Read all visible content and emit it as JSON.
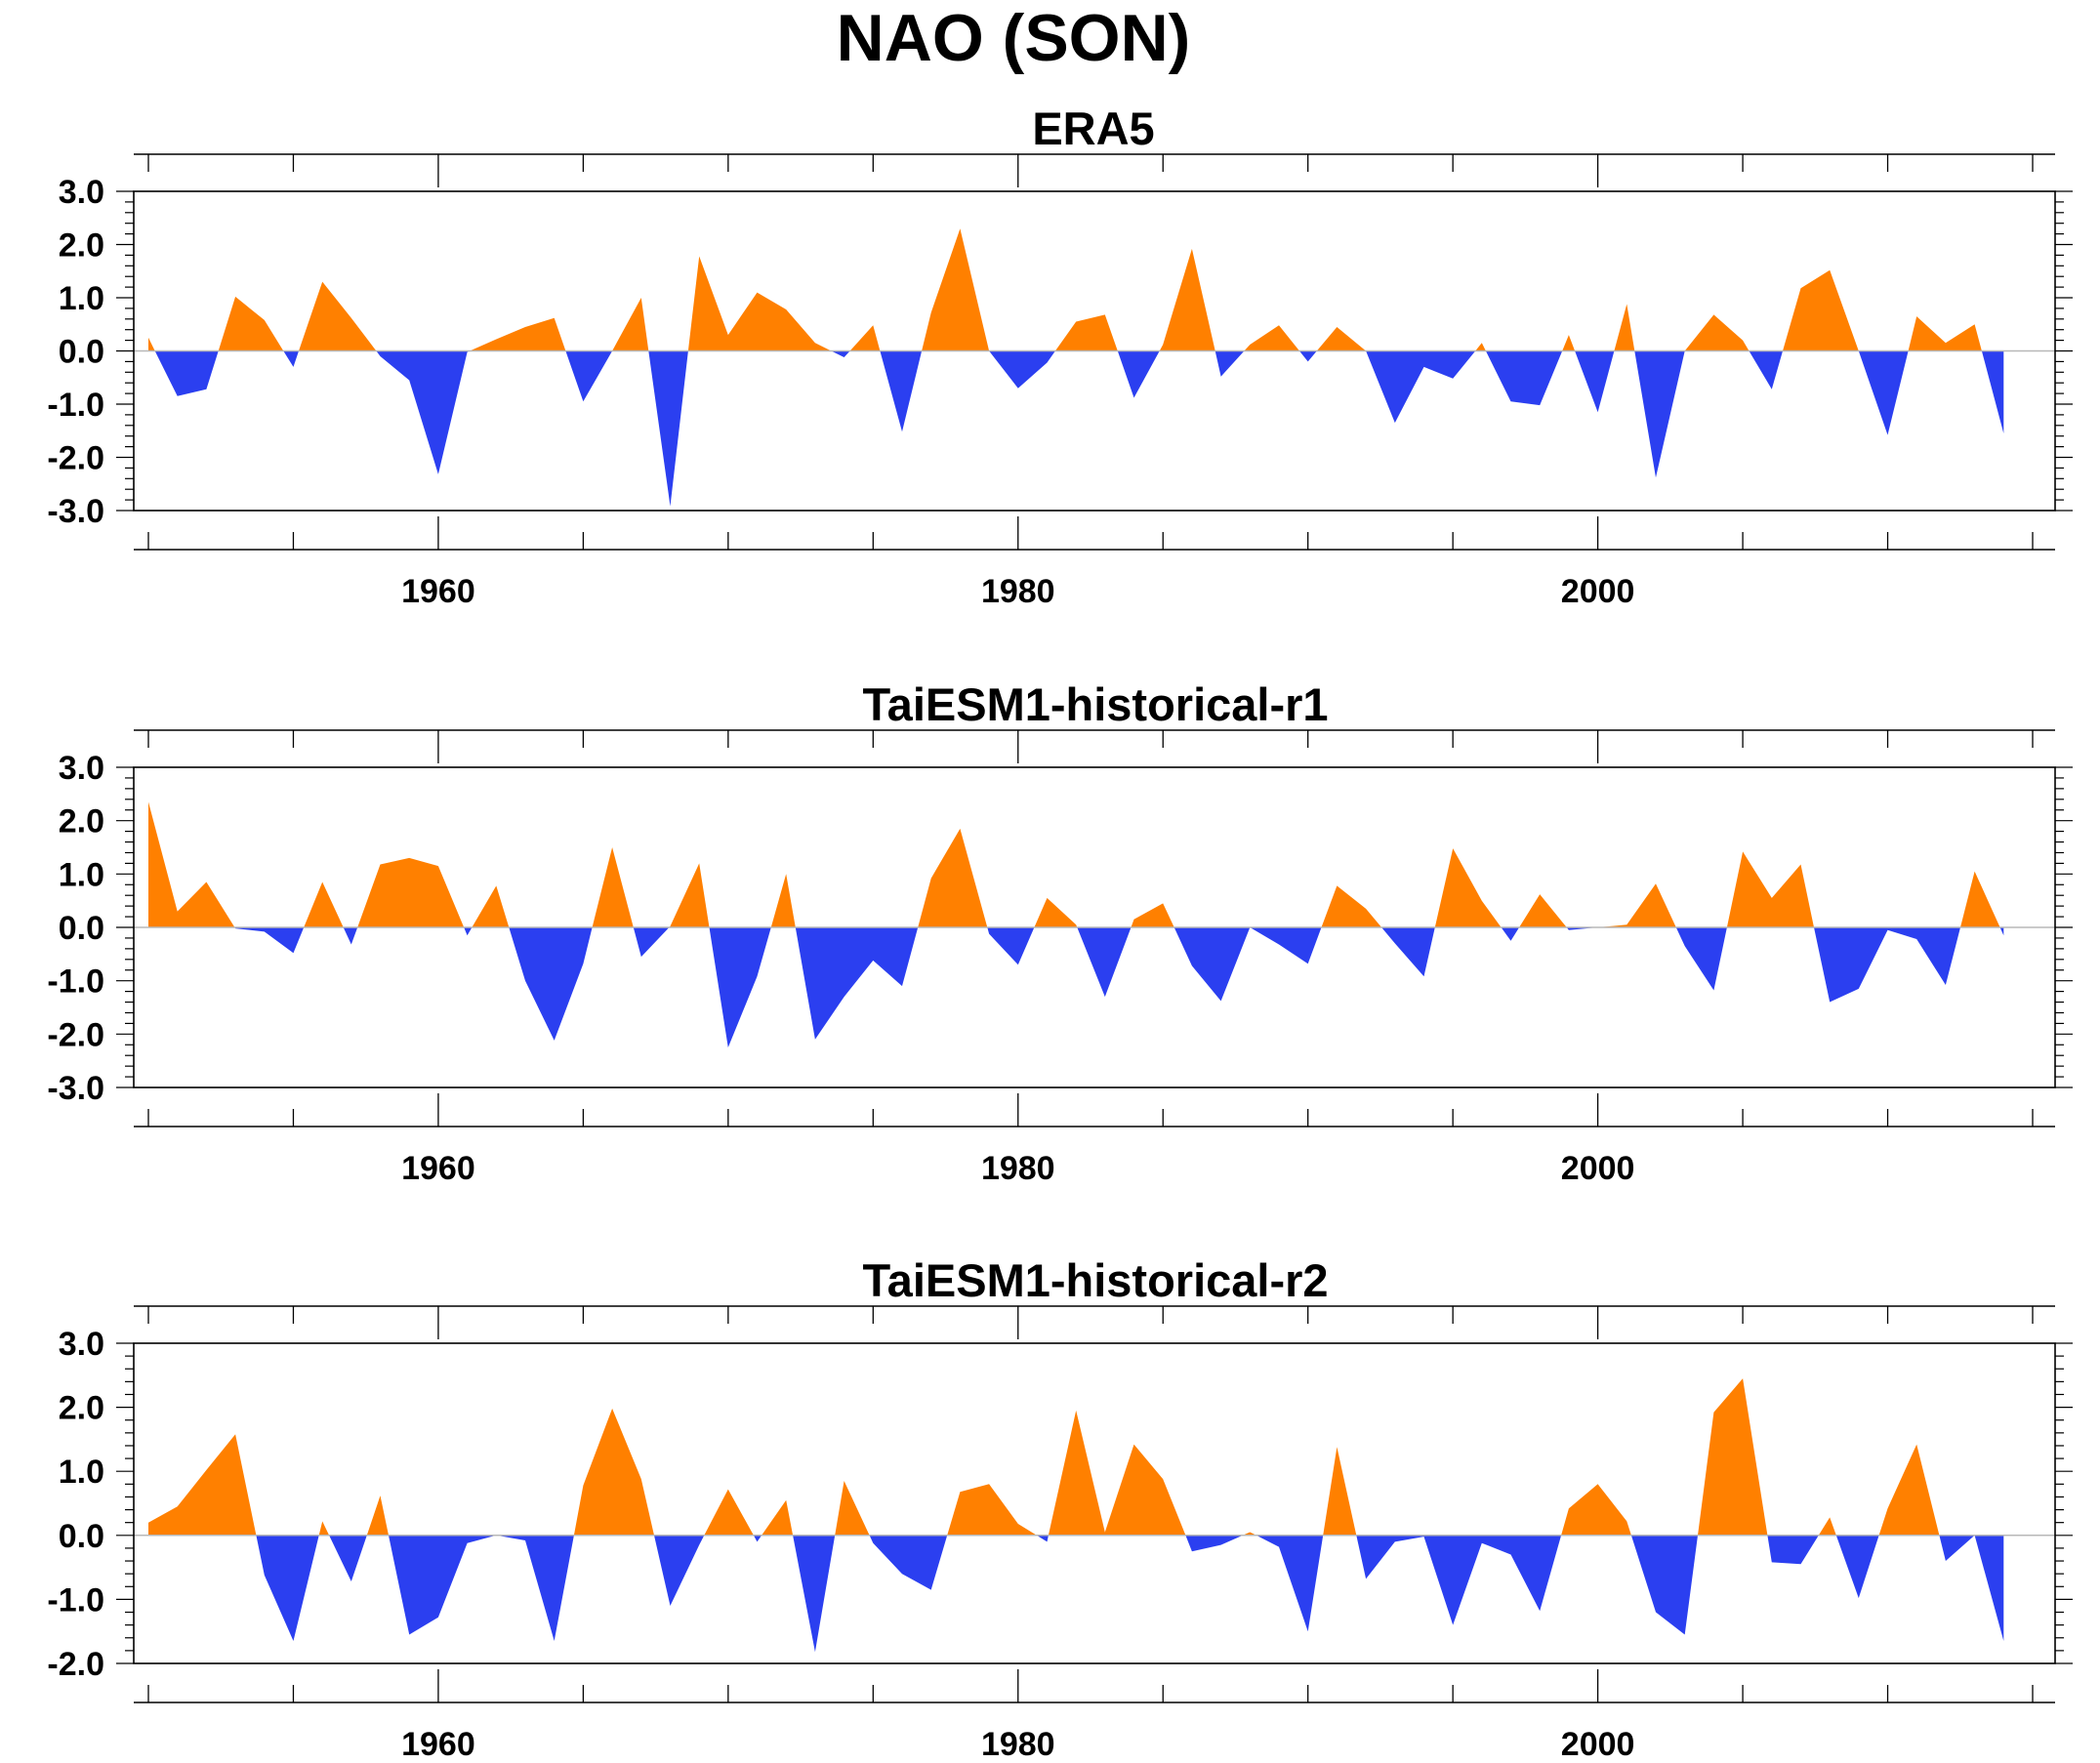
{
  "title": "NAO (SON)",
  "colors": {
    "positive": "#ff8000",
    "negative": "#2b3ff0",
    "frame": "#000000"
  },
  "chart_data": [
    {
      "type": "area",
      "title": "ERA5",
      "xlabel": "",
      "ylabel": "",
      "xlim": [
        1950,
        2015
      ],
      "ylim": [
        -3,
        3
      ],
      "yticks": [
        "3.0",
        "2.0",
        "1.0",
        "0.0",
        "-1.0",
        "-2.0",
        "-3.0"
      ],
      "ytick_values": [
        3,
        2,
        1,
        0,
        -1,
        -2,
        -3
      ],
      "xticks": [
        "1960",
        "1980",
        "2000"
      ],
      "xtick_values": [
        1960,
        1980,
        2000
      ],
      "grid": false,
      "fill": "orange above zero, blue below zero",
      "x": [
        1950,
        1951,
        1952,
        1953,
        1954,
        1955,
        1956,
        1957,
        1958,
        1959,
        1960,
        1961,
        1962,
        1963,
        1964,
        1965,
        1966,
        1967,
        1968,
        1969,
        1970,
        1971,
        1972,
        1973,
        1974,
        1975,
        1976,
        1977,
        1978,
        1979,
        1980,
        1981,
        1982,
        1983,
        1984,
        1985,
        1986,
        1987,
        1988,
        1989,
        1990,
        1991,
        1992,
        1993,
        1994,
        1995,
        1996,
        1997,
        1998,
        1999,
        2000,
        2001,
        2002,
        2003,
        2004,
        2005,
        2006,
        2007,
        2008,
        2009,
        2010,
        2011,
        2012,
        2013,
        2014
      ],
      "values": [
        0.25,
        -0.85,
        -0.72,
        1.02,
        0.58,
        -0.3,
        1.3,
        0.62,
        -0.1,
        -0.55,
        -2.32,
        -0.02,
        0.22,
        0.45,
        0.62,
        -0.95,
        0.0,
        1.0,
        -2.92,
        1.78,
        0.3,
        1.1,
        0.78,
        0.15,
        -0.12,
        0.48,
        -1.52,
        0.72,
        2.3,
        0.0,
        -0.7,
        -0.22,
        0.55,
        0.68,
        -0.88,
        0.12,
        1.92,
        -0.48,
        0.12,
        0.48,
        -0.2,
        0.45,
        0.0,
        -1.35,
        -0.3,
        -0.52,
        0.15,
        -0.95,
        -1.02,
        0.3,
        -1.15,
        0.88,
        -2.38,
        0.0,
        0.68,
        0.2,
        -0.72,
        1.18,
        1.52,
        0.0,
        -1.58,
        0.65,
        0.15,
        0.5,
        -1.55
      ]
    },
    {
      "type": "area",
      "title": "TaiESM1-historical-r1",
      "xlabel": "",
      "ylabel": "",
      "xlim": [
        1950,
        2015
      ],
      "ylim": [
        -3,
        3
      ],
      "yticks": [
        "3.0",
        "2.0",
        "1.0",
        "0.0",
        "-1.0",
        "-2.0",
        "-3.0"
      ],
      "ytick_values": [
        3,
        2,
        1,
        0,
        -1,
        -2,
        -3
      ],
      "xticks": [
        "1960",
        "1980",
        "2000"
      ],
      "xtick_values": [
        1960,
        1980,
        2000
      ],
      "grid": false,
      "fill": "orange above zero, blue below zero",
      "x": [
        1950,
        1951,
        1952,
        1953,
        1954,
        1955,
        1956,
        1957,
        1958,
        1959,
        1960,
        1961,
        1962,
        1963,
        1964,
        1965,
        1966,
        1967,
        1968,
        1969,
        1970,
        1971,
        1972,
        1973,
        1974,
        1975,
        1976,
        1977,
        1978,
        1979,
        1980,
        1981,
        1982,
        1983,
        1984,
        1985,
        1986,
        1987,
        1988,
        1989,
        1990,
        1991,
        1992,
        1993,
        1994,
        1995,
        1996,
        1997,
        1998,
        1999,
        2000,
        2001,
        2002,
        2003,
        2004,
        2005,
        2006,
        2007,
        2008,
        2009,
        2010,
        2011,
        2012,
        2013,
        2014
      ],
      "values": [
        2.35,
        0.3,
        0.85,
        -0.02,
        -0.08,
        -0.48,
        0.85,
        -0.32,
        1.18,
        1.3,
        1.15,
        -0.15,
        0.78,
        -1.0,
        -2.12,
        -0.68,
        1.5,
        -0.55,
        0.02,
        1.2,
        -2.25,
        -0.92,
        1.0,
        -2.1,
        -1.3,
        -0.62,
        -1.1,
        0.92,
        1.85,
        -0.12,
        -0.7,
        0.55,
        0.05,
        -1.3,
        0.15,
        0.45,
        -0.72,
        -1.38,
        0.0,
        -0.32,
        -0.68,
        0.78,
        0.35,
        -0.3,
        -0.92,
        1.48,
        0.5,
        -0.25,
        0.62,
        -0.05,
        0.0,
        0.05,
        0.82,
        -0.35,
        -1.18,
        1.42,
        0.55,
        1.18,
        -1.4,
        -1.15,
        -0.05,
        -0.22,
        -1.08,
        1.05,
        -0.15
      ]
    },
    {
      "type": "area",
      "title": "TaiESM1-historical-r2",
      "xlabel": "",
      "ylabel": "",
      "xlim": [
        1950,
        2015
      ],
      "ylim": [
        -2,
        3
      ],
      "yticks": [
        "3.0",
        "2.0",
        "1.0",
        "0.0",
        "-1.0",
        "-2.0"
      ],
      "ytick_values": [
        3,
        2,
        1,
        0,
        -1,
        -2
      ],
      "xticks": [
        "1960",
        "1980",
        "2000"
      ],
      "xtick_values": [
        1960,
        1980,
        2000
      ],
      "grid": false,
      "fill": "orange above zero, blue below zero",
      "x": [
        1950,
        1951,
        1952,
        1953,
        1954,
        1955,
        1956,
        1957,
        1958,
        1959,
        1960,
        1961,
        1962,
        1963,
        1964,
        1965,
        1966,
        1967,
        1968,
        1969,
        1970,
        1971,
        1972,
        1973,
        1974,
        1975,
        1976,
        1977,
        1978,
        1979,
        1980,
        1981,
        1982,
        1983,
        1984,
        1985,
        1986,
        1987,
        1988,
        1989,
        1990,
        1991,
        1992,
        1993,
        1994,
        1995,
        1996,
        1997,
        1998,
        1999,
        2000,
        2001,
        2002,
        2003,
        2004,
        2005,
        2006,
        2007,
        2008,
        2009,
        2010,
        2011,
        2012,
        2013,
        2014
      ],
      "values": [
        0.2,
        0.45,
        1.02,
        1.58,
        -0.62,
        -1.65,
        0.22,
        -0.72,
        0.62,
        -1.55,
        -1.28,
        -0.12,
        0.0,
        -0.08,
        -1.65,
        0.78,
        1.98,
        0.88,
        -1.1,
        -0.15,
        0.72,
        -0.1,
        0.55,
        -1.82,
        0.85,
        -0.12,
        -0.6,
        -0.85,
        0.68,
        0.8,
        0.18,
        -0.1,
        1.95,
        0.05,
        1.42,
        0.88,
        -0.25,
        -0.15,
        0.05,
        -0.18,
        -1.5,
        1.38,
        -0.68,
        -0.1,
        -0.02,
        -1.4,
        -0.12,
        -0.3,
        -1.18,
        0.42,
        0.8,
        0.22,
        -1.2,
        -1.55,
        1.92,
        2.45,
        -0.42,
        -0.45,
        0.28,
        -0.98,
        0.42,
        1.42,
        -0.4,
        0.0,
        -1.65
      ]
    }
  ]
}
